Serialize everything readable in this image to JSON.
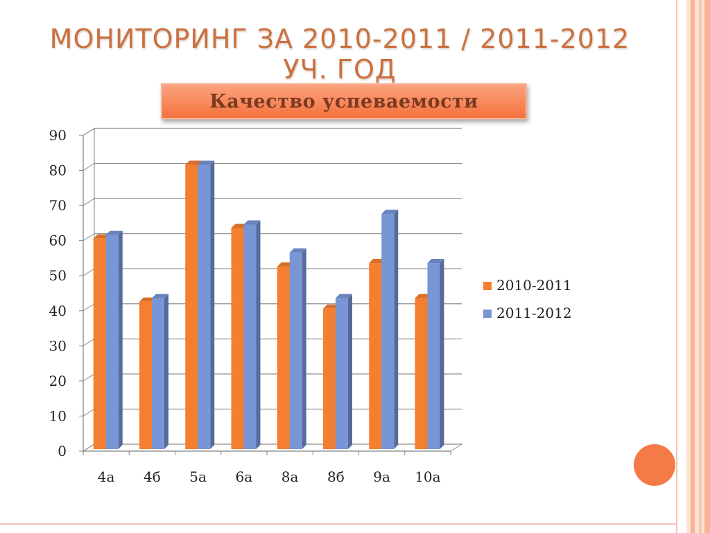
{
  "slide": {
    "title": "МОНИТОРИНГ ЗА 2010-2011 / 2011-2012 УЧ. ГОД",
    "subtitle": "Качество успеваемости",
    "colors": {
      "accent": "#f47a46",
      "title": "#c9713f",
      "stripe_light": "#fde0d2",
      "stripe_mid": "#f9b79a"
    }
  },
  "chart_data": {
    "type": "bar",
    "categories": [
      "4а",
      "4б",
      "5а",
      "6а",
      "8а",
      "8б",
      "9а",
      "10а"
    ],
    "series": [
      {
        "name": "2010-2011",
        "color": "#f47f30",
        "values": [
          60,
          42,
          81,
          63,
          52,
          40,
          53,
          43
        ]
      },
      {
        "name": "2011-2012",
        "color": "#7895d6",
        "values": [
          61,
          43,
          81,
          64,
          56,
          43,
          67,
          53
        ]
      }
    ],
    "ylim": [
      0,
      90
    ],
    "yticks": [
      0,
      10,
      20,
      30,
      40,
      50,
      60,
      70,
      80,
      90
    ],
    "grid": true,
    "legend_position": "right",
    "three_d": true
  }
}
